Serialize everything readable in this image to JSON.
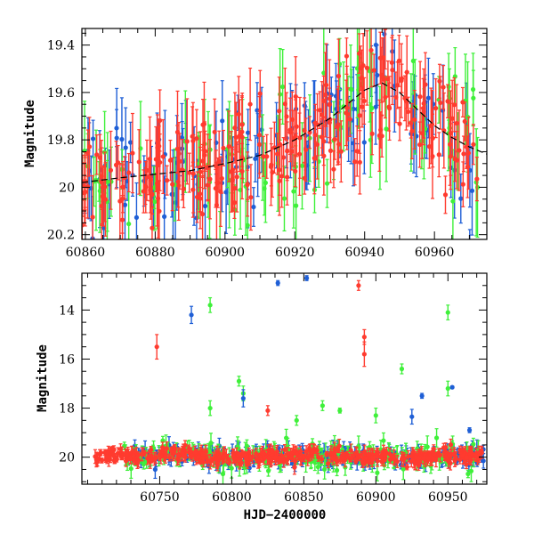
{
  "colors": {
    "blue": "#1f5fd6",
    "green": "#3ff03a",
    "red": "#ff3b2f",
    "model": "#000000"
  },
  "chart_data": [
    {
      "type": "scatter",
      "panel": "top",
      "title": "",
      "xlabel": "",
      "ylabel": "Magnitude",
      "xlim": [
        60859,
        60975
      ],
      "ylim": [
        20.22,
        19.33
      ],
      "y_inverted": true,
      "xticks": [
        60860,
        60880,
        60900,
        60920,
        60940,
        60960
      ],
      "xticklabels": [
        "60860",
        "60880",
        "60900",
        "60920",
        "60940",
        "60960"
      ],
      "yticks": [
        19.4,
        19.6,
        19.8,
        20,
        20.2
      ],
      "yticklabels": [
        "19.4",
        "19.6",
        "19.8",
        "20",
        "20.2"
      ],
      "model": {
        "name": "model curve",
        "style": "dashed",
        "x": [
          60859,
          60870,
          60880,
          60890,
          60900,
          60910,
          60920,
          60930,
          60935,
          60940,
          60945,
          60950,
          60955,
          60960,
          60965,
          60970,
          60975
        ],
        "y": [
          19.98,
          19.96,
          19.945,
          19.93,
          19.9,
          19.865,
          19.8,
          19.71,
          19.65,
          19.59,
          19.56,
          19.6,
          19.67,
          19.74,
          19.79,
          19.83,
          19.86
        ]
      },
      "series": [
        {
          "name": "blue",
          "color": "blue",
          "count": 110,
          "scatter_mag": 0.12,
          "err_mag": 0.14
        },
        {
          "name": "green",
          "color": "green",
          "count": 90,
          "scatter_mag": 0.14,
          "err_mag": 0.16
        },
        {
          "name": "red",
          "color": "red",
          "count": 260,
          "scatter_mag": 0.1,
          "err_mag": 0.12
        }
      ]
    },
    {
      "type": "scatter",
      "panel": "bottom",
      "title": "",
      "xlabel": "HJD−2400000",
      "ylabel": "Magnitude",
      "xlim": [
        60696,
        60977
      ],
      "ylim": [
        21.1,
        12.5
      ],
      "y_inverted": true,
      "xticks": [
        60750,
        60800,
        60850,
        60900,
        60950
      ],
      "xticklabels": [
        "60750",
        "60800",
        "60850",
        "60900",
        "60950"
      ],
      "yticks": [
        14,
        16,
        18,
        20
      ],
      "yticklabels": [
        "14",
        "16",
        "18",
        "20"
      ],
      "series": [
        {
          "name": "blue",
          "color": "blue",
          "count": 260,
          "scatter_mag": 0.18,
          "err_mag": 0.25
        },
        {
          "name": "green",
          "color": "green",
          "count": 200,
          "scatter_mag": 0.25,
          "err_mag": 0.3
        },
        {
          "name": "red",
          "color": "red",
          "count": 420,
          "scatter_mag": 0.15,
          "err_mag": 0.2
        }
      ],
      "outliers": [
        {
          "series": "blue",
          "x": 60832,
          "y": 12.9,
          "err": 0.1
        },
        {
          "series": "blue",
          "x": 60852,
          "y": 12.7,
          "err": 0.1
        },
        {
          "series": "blue",
          "x": 60772,
          "y": 14.2,
          "err": 0.35
        },
        {
          "series": "green",
          "x": 60785,
          "y": 13.8,
          "err": 0.3
        },
        {
          "series": "red",
          "x": 60888,
          "y": 13.0,
          "err": 0.2
        },
        {
          "series": "green",
          "x": 60950,
          "y": 14.1,
          "err": 0.3
        },
        {
          "series": "red",
          "x": 60748,
          "y": 15.5,
          "err": 0.5
        },
        {
          "series": "red",
          "x": 60892,
          "y": 15.1,
          "err": 0.3
        },
        {
          "series": "red",
          "x": 60892,
          "y": 15.8,
          "err": 0.5
        },
        {
          "series": "green",
          "x": 60918,
          "y": 16.4,
          "err": 0.2
        },
        {
          "series": "green",
          "x": 60805,
          "y": 16.9,
          "err": 0.2
        },
        {
          "series": "green",
          "x": 60950,
          "y": 17.2,
          "err": 0.3
        },
        {
          "series": "blue",
          "x": 60953,
          "y": 17.15,
          "err": 0.05
        },
        {
          "series": "green",
          "x": 60808,
          "y": 17.4,
          "err": 0.3
        },
        {
          "series": "blue",
          "x": 60808,
          "y": 17.6,
          "err": 0.35
        },
        {
          "series": "blue",
          "x": 60932,
          "y": 17.5,
          "err": 0.1
        },
        {
          "series": "green",
          "x": 60863,
          "y": 17.9,
          "err": 0.2
        },
        {
          "series": "green",
          "x": 60785,
          "y": 18.0,
          "err": 0.3
        },
        {
          "series": "red",
          "x": 60825,
          "y": 18.1,
          "err": 0.2
        },
        {
          "series": "green",
          "x": 60875,
          "y": 18.1,
          "err": 0.1
        },
        {
          "series": "green",
          "x": 60900,
          "y": 18.3,
          "err": 0.3
        },
        {
          "series": "blue",
          "x": 60925,
          "y": 18.35,
          "err": 0.3
        },
        {
          "series": "green",
          "x": 60845,
          "y": 18.5,
          "err": 0.2
        },
        {
          "series": "blue",
          "x": 60965,
          "y": 18.9,
          "err": 0.1
        }
      ]
    }
  ]
}
